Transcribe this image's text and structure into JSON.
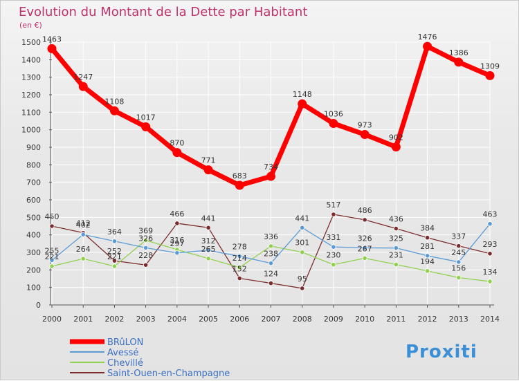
{
  "chart_data": {
    "type": "line",
    "title": "Evolution du Montant de la Dette par Habitant",
    "subtitle": "(en €)",
    "x": [
      "2000",
      "2001",
      "2002",
      "2003",
      "2004",
      "2005",
      "2006",
      "2007",
      "2008",
      "2009",
      "2010",
      "2011",
      "2012",
      "2013",
      "2014"
    ],
    "ylim": [
      0,
      1500
    ],
    "yticks": [
      0,
      100,
      200,
      300,
      400,
      500,
      600,
      700,
      800,
      900,
      1000,
      1100,
      1200,
      1300,
      1400,
      1500
    ],
    "grid": true,
    "legend_position": "bottom-left",
    "series": [
      {
        "name": "BRûLON",
        "color": "#ff0000",
        "values": [
          1463,
          1247,
          1108,
          1017,
          870,
          771,
          683,
          734,
          1148,
          1036,
          973,
          902,
          1476,
          1386,
          1309
        ],
        "labels": [
          "1463",
          "1247",
          "1108",
          "1017",
          "870",
          "771",
          "683",
          "734",
          "1148",
          "1036",
          "973",
          "902",
          "1476",
          "1386",
          "1309"
        ]
      },
      {
        "name": "Avessé",
        "color": "#5b9bd5",
        "values": [
          255,
          402,
          364,
          326,
          297,
          312,
          278,
          238,
          441,
          331,
          326,
          325,
          281,
          245,
          463
        ],
        "labels": [
          "255",
          "402",
          "364",
          "326",
          "297",
          "312",
          "278",
          "238",
          "441",
          "331",
          "326",
          "325",
          "281",
          "245",
          "463"
        ]
      },
      {
        "name": "Chevillé",
        "color": "#92d050",
        "values": [
          221,
          264,
          221,
          369,
          316,
          265,
          214,
          336,
          301,
          230,
          267,
          231,
          194,
          156,
          134
        ],
        "labels": [
          "221",
          "264",
          "221",
          "369",
          "316",
          "265",
          "214",
          "336",
          "301",
          "230",
          "267",
          "231",
          "194",
          "156",
          "134"
        ]
      },
      {
        "name": "Saint-Ouen-en-Champagne",
        "color": "#7b2c2c",
        "values": [
          450,
          412,
          252,
          228,
          466,
          441,
          152,
          124,
          95,
          517,
          486,
          436,
          384,
          337,
          293
        ],
        "labels": [
          "450",
          "412",
          "252",
          "228",
          "466",
          "441",
          "152",
          "124",
          "95",
          "517",
          "486",
          "436",
          "384",
          "337",
          "293"
        ]
      }
    ]
  },
  "logo": {
    "text": "Proxiti"
  },
  "colors": {
    "title": "#c0306a",
    "axis": "#333333",
    "grid": "#ffffff"
  }
}
